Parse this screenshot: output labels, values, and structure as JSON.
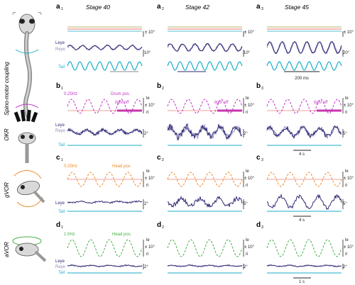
{
  "stages": [
    "Stage 40",
    "Stage 42",
    "Stage 45"
  ],
  "row_labels": [
    "Spino-motor coupling",
    "OKR",
    "gVOR",
    "aVOR"
  ],
  "panels": {
    "a": [
      "a",
      "a",
      "a"
    ],
    "a_sub": [
      "1",
      "2",
      "3"
    ],
    "b": [
      "b",
      "b",
      "b"
    ],
    "b_sub": [
      "1",
      "2",
      "3"
    ],
    "c": [
      "c",
      "c",
      "c"
    ],
    "c_sub": [
      "1",
      "2",
      "3"
    ],
    "d": [
      "d",
      "d",
      "d"
    ],
    "d_sub": [
      "1",
      "2",
      "3"
    ]
  },
  "traces": {
    "leye": "Leye",
    "reye": "Reye",
    "tail": "Tail"
  },
  "stimuli": {
    "b_freq": "0.25Hz",
    "b_stim": "Drum pos",
    "b_light": "light off",
    "c_freq": "0.25Hz",
    "c_stim": "Head pos",
    "d_freq": "1.0Hz",
    "d_stim": "Head pos."
  },
  "side_labels": {
    "le": "le",
    "ri": "ri"
  },
  "scales": {
    "a_top": "± 10°",
    "a_eye1": "10°",
    "a_eye2": "10°",
    "a_eye3": "20°",
    "b_top": "± 10°",
    "b_eye1": "2°",
    "b_eye2": "2°",
    "b_eye3": "5°",
    "c_top": "± 10°",
    "c_eye1": "2°",
    "c_eye2": "5°",
    "c_eye3": "5°",
    "d_top": "± 10°",
    "d_eye1": "2°",
    "d_eye2": "2°",
    "d_eye3": "2°"
  },
  "time_bars": {
    "a": "200 ms",
    "b": "4 s",
    "c": "4 s",
    "d": "1 s"
  },
  "colors": {
    "leye": "#2e2a72",
    "reye": "#8f8bbd",
    "tail": "#1aaec9",
    "drum": "#c033c8",
    "gvor": "#f08b2b",
    "avor": "#46b043",
    "red": "#e0453a",
    "olive": "#9a9a3a"
  }
}
